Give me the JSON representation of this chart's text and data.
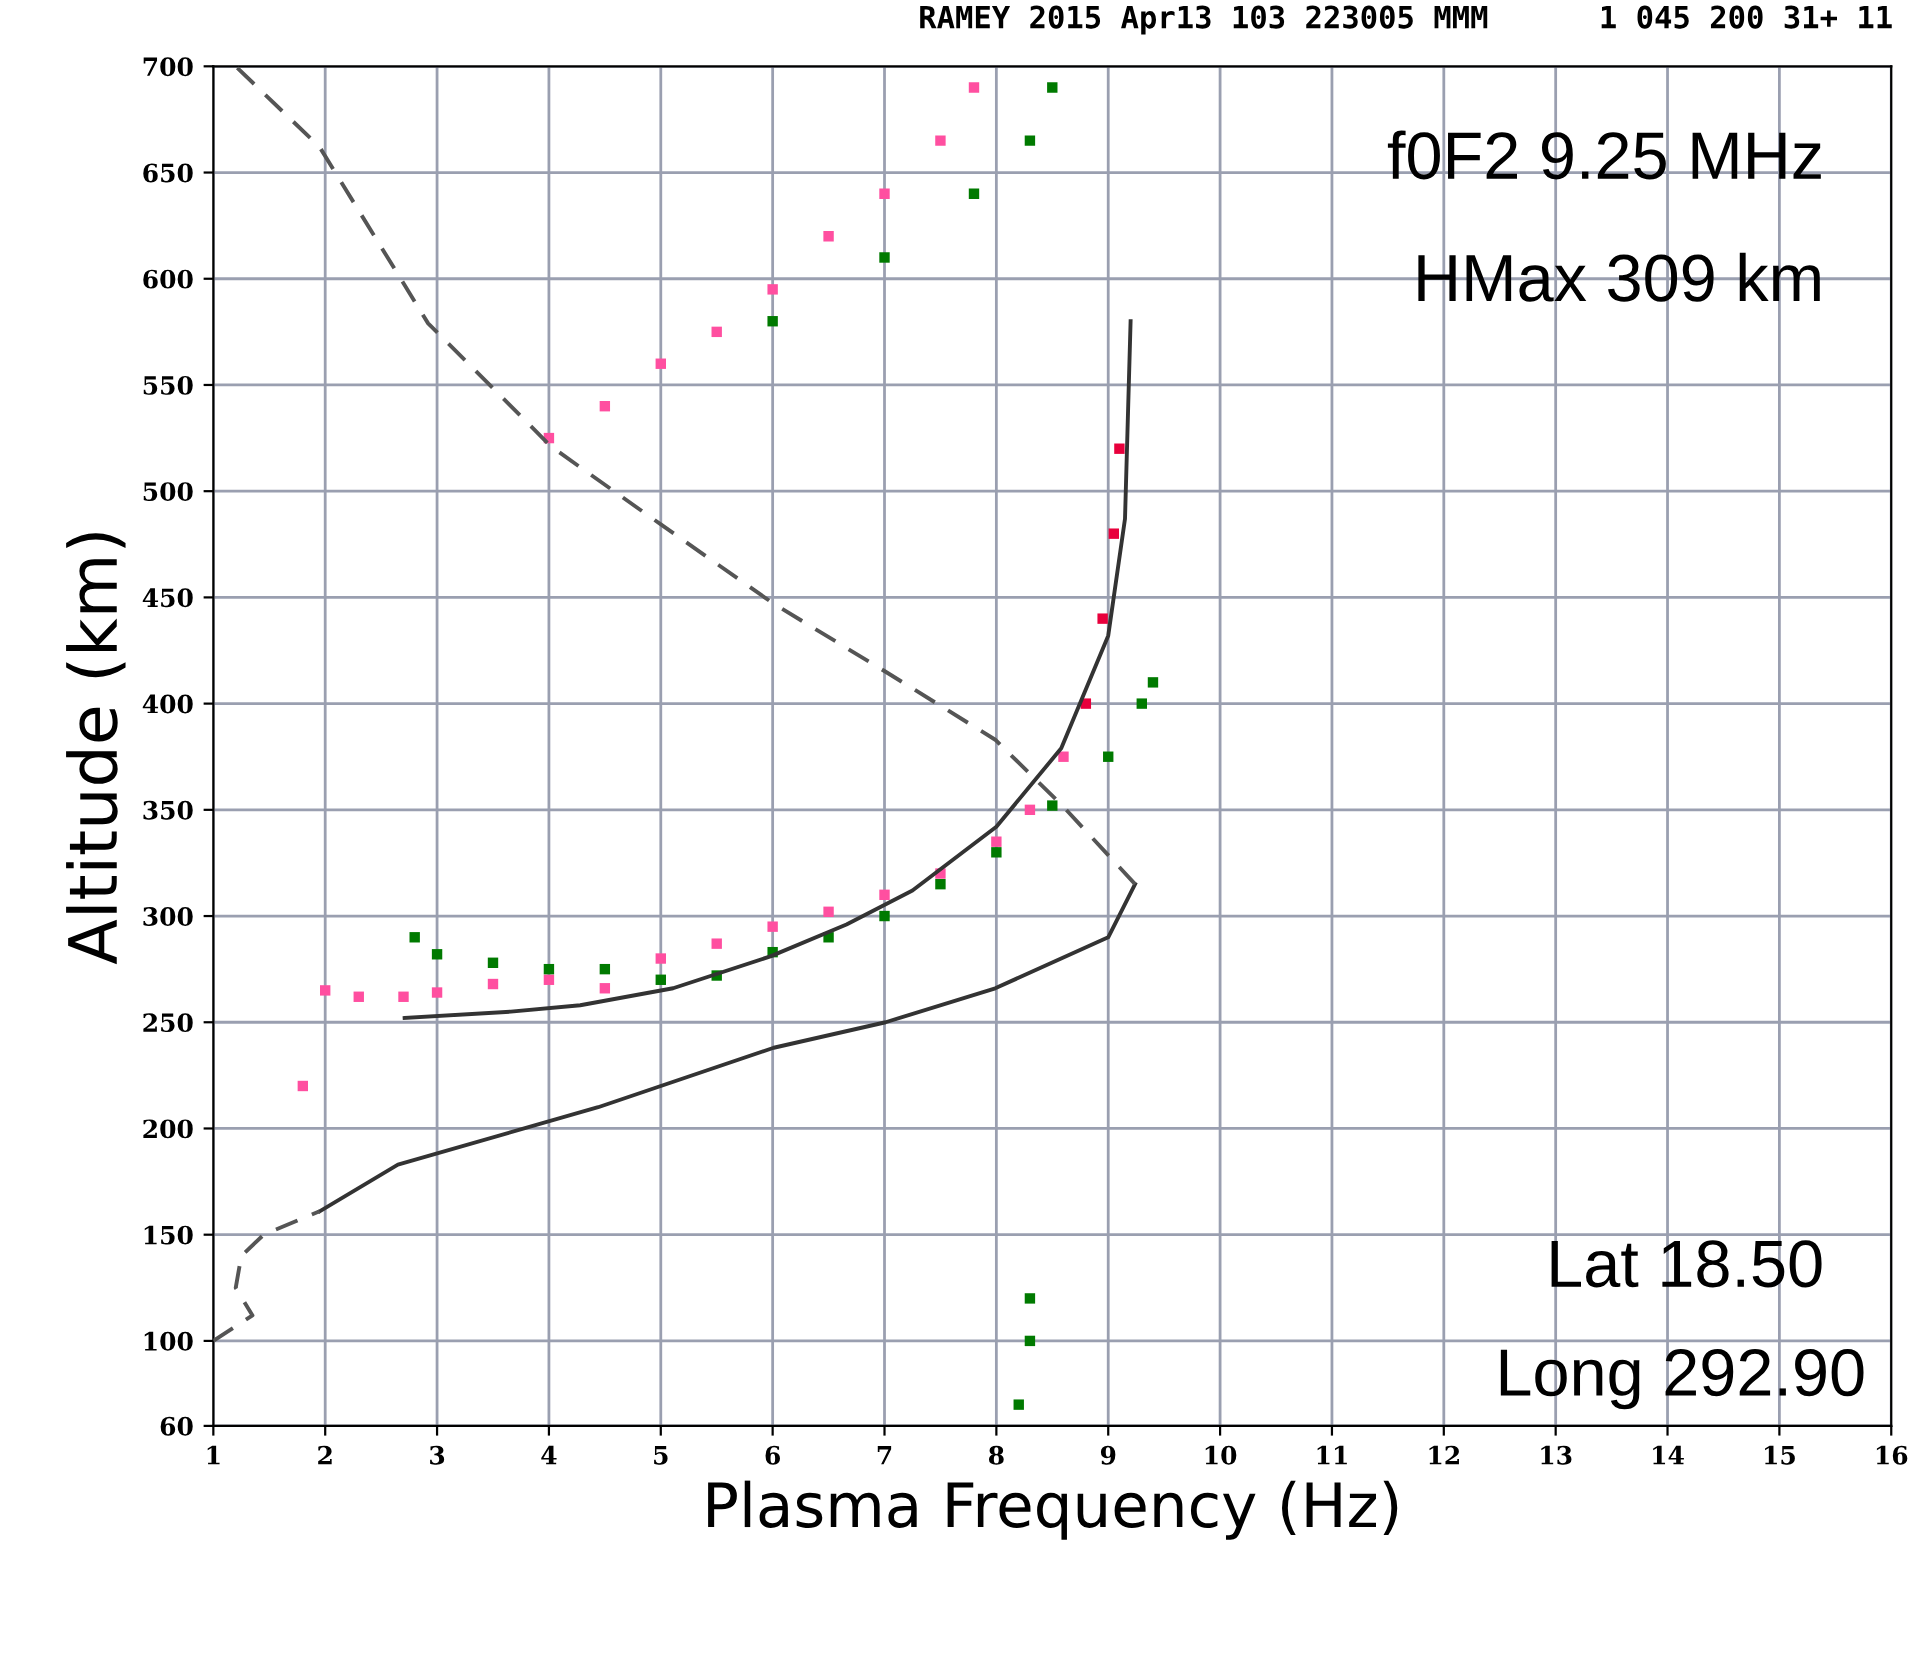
{
  "chart_data": {
    "type": "scatter",
    "title": "RAMEY 2015 Apr13 103 223005 MMM      1 045 200 31+ 11",
    "xlabel": "Plasma Frequency (Hz)",
    "ylabel": "Altitude (km)",
    "annotations": [
      "f0F2 9.25 MHz",
      "HMax 309 km",
      "Lat 18.50",
      "Long 292.90"
    ],
    "xlim": [
      1,
      16
    ],
    "xticks": [
      1,
      2,
      3,
      4,
      5,
      6,
      7,
      8,
      9,
      10,
      11,
      12,
      13,
      14,
      15,
      16
    ],
    "ylim": [
      60,
      700
    ],
    "yticks": [
      60,
      100,
      150,
      200,
      250,
      300,
      350,
      400,
      450,
      500,
      550,
      600,
      650,
      700
    ],
    "grid": true,
    "legend": false,
    "series": [
      {
        "marker": "square",
        "color": "#ff4fa0",
        "x": [
          1.8,
          2.0,
          2.3,
          2.7,
          3.0,
          3.5,
          4.0,
          4.5,
          5.0,
          5.5,
          6.0,
          6.5,
          7.0,
          7.5,
          8.0,
          8.3,
          8.6
        ],
        "values": [
          220,
          265,
          262,
          262,
          264,
          268,
          270,
          266,
          280,
          287,
          295,
          302,
          310,
          320,
          335,
          350,
          375
        ]
      },
      {
        "marker": "square",
        "color": "#ff4fa0",
        "x": [
          4.0,
          4.5,
          5.0,
          5.5,
          6.0,
          6.5,
          7.0,
          7.5,
          7.8
        ],
        "values": [
          525,
          540,
          560,
          575,
          595,
          620,
          640,
          665,
          690
        ]
      },
      {
        "marker": "square",
        "color": "#e8003c",
        "x": [
          8.8,
          8.95,
          9.05,
          9.1
        ],
        "values": [
          400,
          440,
          480,
          520
        ]
      },
      {
        "marker": "square",
        "color": "#007a00",
        "x": [
          2.8,
          3.0,
          3.5,
          4.0,
          4.5,
          5.0,
          5.5,
          6.0,
          6.5,
          7.0,
          7.5,
          8.0,
          8.5,
          9.0,
          9.3,
          9.4
        ],
        "values": [
          290,
          282,
          278,
          275,
          275,
          270,
          272,
          283,
          290,
          300,
          315,
          330,
          352,
          375,
          400,
          410
        ]
      },
      {
        "marker": "square",
        "color": "#007a00",
        "x": [
          6.0,
          7.0,
          7.8,
          8.3,
          8.5,
          8.2,
          8.3,
          8.3
        ],
        "values": [
          580,
          610,
          640,
          665,
          690,
          70,
          100,
          120
        ]
      },
      {
        "type": "line",
        "marker": "none",
        "line_style": "solid",
        "color": "#333333",
        "x": [
          2.71,
          3.66,
          4.28,
          5.11,
          5.98,
          6.66,
          7.25,
          8.0,
          8.58,
          9.0,
          9.15,
          9.2
        ],
        "values": [
          252,
          255,
          258,
          266,
          281,
          296,
          312,
          342,
          379,
          432,
          487,
          580
        ]
      },
      {
        "type": "line",
        "marker": "none",
        "line_style": "solid",
        "color": "#333333",
        "x": [
          1.95,
          2.65,
          4.44,
          6.01,
          7.01,
          7.99,
          9.0,
          9.24
        ],
        "values": [
          161,
          183,
          210,
          238,
          250,
          266,
          290,
          315
        ]
      },
      {
        "type": "line",
        "marker": "none",
        "line_style": "dashed",
        "color": "#555555",
        "x": [
          1.0,
          1.35,
          1.2,
          1.25,
          1.45,
          1.95
        ],
        "values": [
          100,
          112,
          125,
          140,
          150,
          161
        ]
      },
      {
        "type": "line",
        "marker": "none",
        "line_style": "dashed",
        "color": "#555555",
        "x": [
          9.24,
          8.59,
          7.99,
          7.01,
          6.01,
          5.01,
          4.02,
          2.92,
          1.95,
          1.2
        ],
        "values": [
          315,
          352,
          383,
          415,
          447,
          484,
          521,
          579,
          662,
          700
        ]
      }
    ]
  }
}
